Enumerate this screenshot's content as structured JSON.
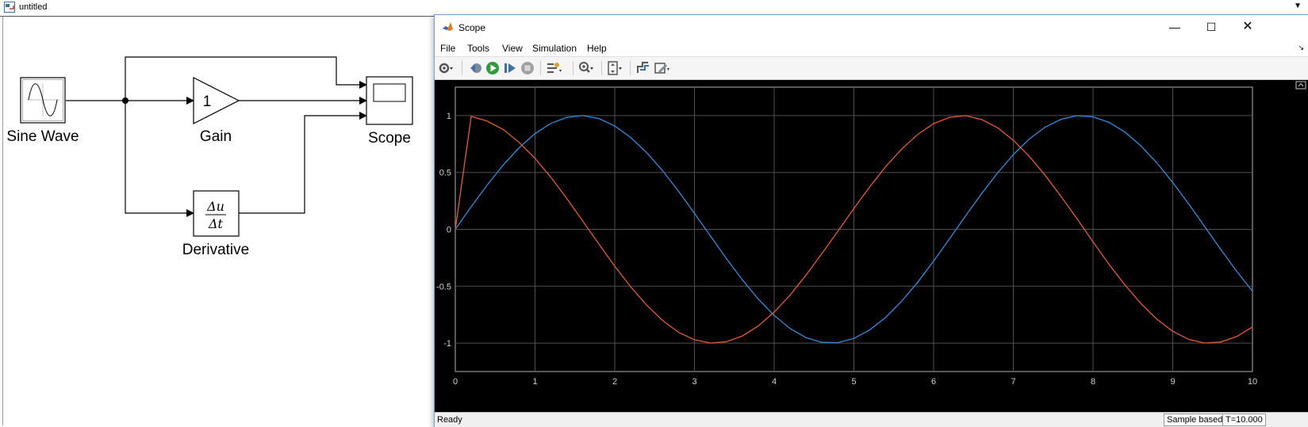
{
  "model": {
    "title": "untitled"
  },
  "blocks": {
    "sine": {
      "label": "Sine Wave"
    },
    "gain": {
      "label": "Gain",
      "value": "1"
    },
    "derivative": {
      "label": "Derivative",
      "num": "Δu",
      "den": "Δt"
    },
    "scope": {
      "label": "Scope"
    }
  },
  "scope_window": {
    "title": "Scope",
    "menu": [
      "File",
      "Tools",
      "View",
      "Simulation",
      "Help"
    ],
    "toolbar_icons": [
      "gear-icon",
      "stop-back-icon",
      "run-icon",
      "step-forward-icon",
      "stop-icon",
      "highlight-icon",
      "zoom-icon",
      "autoscale-icon",
      "signal-icon",
      "edit-icon"
    ],
    "status": {
      "left": "Ready",
      "mode": "Sample based",
      "time": "T=10.000"
    }
  },
  "colors": {
    "series1": "#2e8de0",
    "series2": "#e8592e",
    "plot_bg": "#000000",
    "grid": "#505050"
  },
  "chart_data": {
    "type": "line",
    "xlim": [
      0,
      10
    ],
    "ylim": [
      -1.25,
      1.25
    ],
    "xticks": [
      0,
      1,
      2,
      3,
      4,
      5,
      6,
      7,
      8,
      9,
      10
    ],
    "yticks": [
      1,
      0.5,
      0,
      -0.5,
      -1
    ],
    "ytick_labels": [
      "1",
      "0.5",
      "0",
      "-0.5",
      "-1"
    ],
    "grid": true,
    "series": [
      {
        "color": "#2e8de0",
        "x": [
          0,
          0.2,
          0.4,
          0.6,
          0.8,
          1,
          1.2,
          1.4,
          1.6,
          1.8,
          2,
          2.2,
          2.4,
          2.6,
          2.8,
          3,
          3.2,
          3.4,
          3.6,
          3.8,
          4,
          4.2,
          4.4,
          4.6,
          4.8,
          5,
          5.2,
          5.4,
          5.6,
          5.8,
          6,
          6.2,
          6.4,
          6.6,
          6.8,
          7,
          7.2,
          7.4,
          7.6,
          7.8,
          8,
          8.2,
          8.4,
          8.6,
          8.8,
          9,
          9.2,
          9.4,
          9.6,
          9.8,
          10
        ],
        "y": [
          0,
          0.199,
          0.389,
          0.565,
          0.717,
          0.841,
          0.932,
          0.985,
          1,
          0.974,
          0.909,
          0.808,
          0.675,
          0.516,
          0.335,
          0.141,
          -0.058,
          -0.256,
          -0.443,
          -0.612,
          -0.757,
          -0.872,
          -0.952,
          -0.994,
          -0.996,
          -0.959,
          -0.883,
          -0.773,
          -0.631,
          -0.465,
          -0.279,
          -0.083,
          0.117,
          0.312,
          0.494,
          0.657,
          0.794,
          0.899,
          0.968,
          0.999,
          0.989,
          0.941,
          0.855,
          0.734,
          0.585,
          0.412,
          0.223,
          0.025,
          -0.174,
          -0.366,
          -0.544
        ]
      },
      {
        "color": "#e8592e",
        "x": [
          0,
          0.2,
          0.4,
          0.6,
          0.8,
          1,
          1.2,
          1.4,
          1.6,
          1.8,
          2,
          2.2,
          2.4,
          2.6,
          2.8,
          3,
          3.2,
          3.4,
          3.6,
          3.8,
          4,
          4.2,
          4.4,
          4.6,
          4.8,
          5,
          5.2,
          5.4,
          5.6,
          5.8,
          6,
          6.2,
          6.4,
          6.6,
          6.8,
          7,
          7.2,
          7.4,
          7.6,
          7.8,
          8,
          8.2,
          8.4,
          8.6,
          8.8,
          9,
          9.2,
          9.4,
          9.6,
          9.8,
          10
        ],
        "y": [
          0,
          0.993,
          0.951,
          0.878,
          0.765,
          0.624,
          0.457,
          0.27,
          0.072,
          -0.128,
          -0.324,
          -0.505,
          -0.666,
          -0.801,
          -0.905,
          -0.971,
          -0.999,
          -0.988,
          -0.937,
          -0.85,
          -0.727,
          -0.577,
          -0.402,
          -0.212,
          -0.016,
          0.184,
          0.375,
          0.552,
          0.706,
          0.834,
          0.929,
          0.985,
          0.999,
          0.966,
          0.894,
          0.783,
          0.642,
          0.475,
          0.288,
          0.092,
          -0.11,
          -0.307,
          -0.489,
          -0.652,
          -0.79,
          -0.896,
          -0.967,
          -0.999,
          -0.991,
          -0.943,
          -0.858
        ]
      }
    ]
  }
}
